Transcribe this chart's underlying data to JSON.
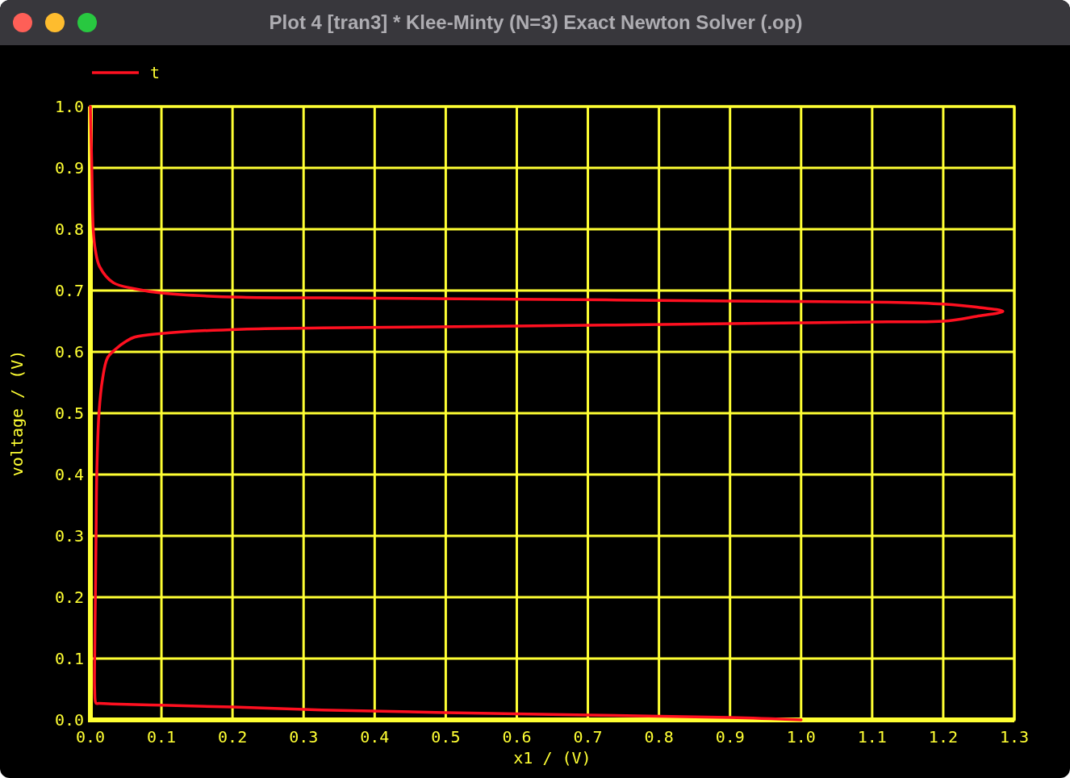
{
  "chart_data": {
    "type": "line",
    "title": "Plot 4 [tran3] * Klee-Minty (N=3) Exact Newton Solver (.op)",
    "xlabel": "x1 / (V)",
    "ylabel": "voltage / (V)",
    "xlim": [
      0,
      1.3
    ],
    "ylim": [
      0,
      1
    ],
    "xticks": [
      {
        "value": 0,
        "label": "0.0"
      },
      0.1,
      0.2,
      0.3,
      0.4,
      0.5,
      0.6,
      0.7,
      0.8,
      0.9,
      {
        "value": 1,
        "label": "1.0"
      },
      1.1,
      1.2,
      1.3
    ],
    "yticks": [
      {
        "value": 0,
        "label": "0.0"
      },
      0.1,
      0.2,
      0.3,
      0.4,
      0.5,
      0.6,
      0.7,
      0.8,
      0.9,
      {
        "value": 1,
        "label": "1.0"
      }
    ],
    "grid": true,
    "legend": "top left",
    "series": [
      {
        "name": "t",
        "color": "#ff1020",
        "x": [
          1.0,
          0.9,
          0.7,
          0.5,
          0.326,
          0.2,
          0.1,
          0.03,
          0.012,
          0.008,
          0.006,
          0.006,
          0.007,
          0.008,
          0.009,
          0.012,
          0.017,
          0.024,
          0.035,
          0.05,
          0.062,
          0.1,
          0.213,
          0.327,
          0.6,
          0.9,
          1.122,
          1.2,
          1.247,
          1.284,
          1.247,
          1.2,
          1.122,
          0.9,
          0.6,
          0.327,
          0.213,
          0.1,
          0.062,
          0.032,
          0.013,
          0.007,
          0.004,
          0.002,
          0.0
        ],
        "values": [
          0.0,
          0.004,
          0.008,
          0.012,
          0.016,
          0.021,
          0.024,
          0.026,
          0.027,
          0.027,
          0.05,
          0.099,
          0.2,
          0.301,
          0.4,
          0.498,
          0.555,
          0.59,
          0.604,
          0.617,
          0.624,
          0.63,
          0.637,
          0.639,
          0.642,
          0.646,
          0.649,
          0.65,
          0.658,
          0.666,
          0.673,
          0.678,
          0.681,
          0.683,
          0.686,
          0.688,
          0.689,
          0.696,
          0.703,
          0.713,
          0.739,
          0.766,
          0.8,
          0.9,
          1.0
        ]
      }
    ]
  }
}
